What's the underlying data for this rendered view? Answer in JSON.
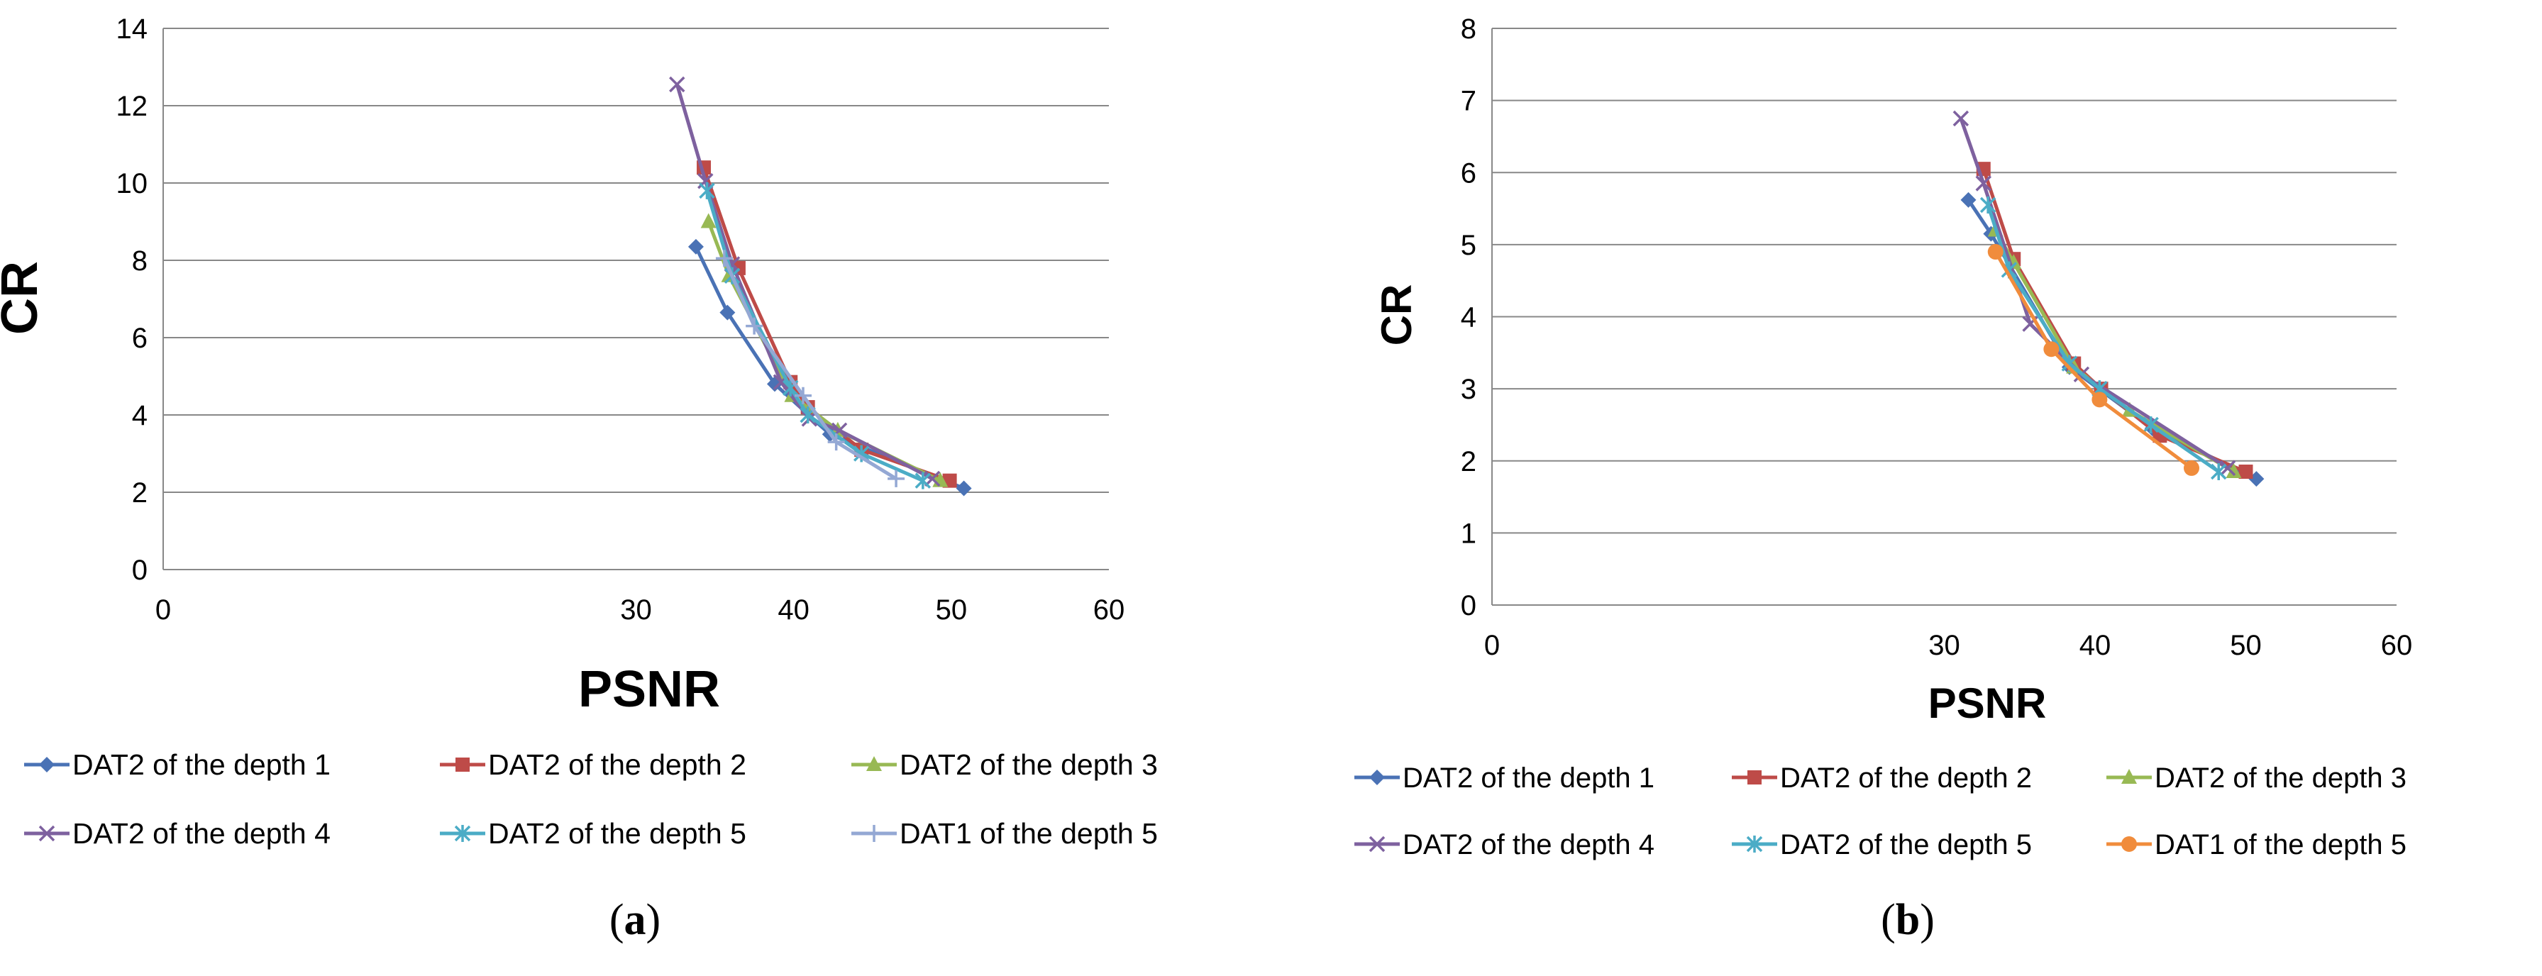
{
  "chart_data": [
    {
      "type": "line",
      "xlabel": "PSNR",
      "ylabel": "CR",
      "xlim": [
        0,
        60
      ],
      "ylim": [
        0,
        14
      ],
      "x_ticks": [
        0,
        30,
        40,
        50,
        60
      ],
      "y_ticks": [
        0,
        2,
        4,
        6,
        8,
        10,
        12,
        14
      ],
      "grid": "horizontal",
      "legend_position": "bottom",
      "caption": "a",
      "series": [
        {
          "name": "DAT2 of the depth 1",
          "color": "#4a72b5",
          "marker": "diamond",
          "points": [
            [
              33.8,
              8.35
            ],
            [
              35.8,
              6.65
            ],
            [
              38.8,
              4.8
            ],
            [
              42.3,
              3.5
            ],
            [
              50.8,
              2.1
            ]
          ]
        },
        {
          "name": "DAT2 of the depth 2",
          "color": "#be4b48",
          "marker": "square",
          "points": [
            [
              34.3,
              10.4
            ],
            [
              36.5,
              7.8
            ],
            [
              39.8,
              4.85
            ],
            [
              40.9,
              4.2
            ],
            [
              44.3,
              3.1
            ],
            [
              49.9,
              2.3
            ]
          ]
        },
        {
          "name": "DAT2 of the depth 3",
          "color": "#98b954",
          "marker": "triangle",
          "points": [
            [
              34.6,
              9.0
            ],
            [
              35.9,
              7.6
            ],
            [
              39.9,
              4.5
            ],
            [
              42.8,
              3.6
            ],
            [
              49.3,
              2.3
            ]
          ]
        },
        {
          "name": "DAT2 of the depth 4",
          "color": "#7e619f",
          "marker": "x",
          "points": [
            [
              32.6,
              12.55
            ],
            [
              34.4,
              10.05
            ],
            [
              36.1,
              7.9
            ],
            [
              39.2,
              4.85
            ],
            [
              41.0,
              3.9
            ],
            [
              42.9,
              3.6
            ],
            [
              48.8,
              2.35
            ]
          ]
        },
        {
          "name": "DAT2 of the depth 5",
          "color": "#4bacc6",
          "marker": "asterisk",
          "points": [
            [
              34.5,
              9.8
            ],
            [
              36.1,
              7.6
            ],
            [
              39.8,
              4.7
            ],
            [
              40.9,
              4.0
            ],
            [
              44.3,
              3.0
            ],
            [
              48.2,
              2.3
            ]
          ]
        },
        {
          "name": "DAT1 of the depth 5",
          "color": "#94a8d4",
          "marker": "plus",
          "points": [
            [
              35.6,
              8.05
            ],
            [
              37.5,
              6.3
            ],
            [
              40.6,
              4.5
            ],
            [
              42.7,
              3.3
            ],
            [
              46.5,
              2.35
            ]
          ]
        }
      ]
    },
    {
      "type": "line",
      "xlabel": "PSNR",
      "ylabel": "CR",
      "xlim": [
        0,
        60
      ],
      "ylim": [
        0,
        8
      ],
      "x_ticks": [
        0,
        30,
        40,
        50,
        60
      ],
      "y_ticks": [
        0,
        1,
        2,
        3,
        4,
        5,
        6,
        7,
        8
      ],
      "grid": "horizontal",
      "legend_position": "bottom",
      "caption": "b",
      "series": [
        {
          "name": "DAT2 of the depth 1",
          "color": "#4a72b5",
          "marker": "diamond",
          "points": [
            [
              31.6,
              5.62
            ],
            [
              33.1,
              5.15
            ],
            [
              38.3,
              3.3
            ],
            [
              43.8,
              2.45
            ],
            [
              50.7,
              1.75
            ]
          ]
        },
        {
          "name": "DAT2 of the depth 2",
          "color": "#be4b48",
          "marker": "square",
          "points": [
            [
              32.6,
              6.05
            ],
            [
              34.6,
              4.8
            ],
            [
              38.6,
              3.35
            ],
            [
              40.4,
              3.0
            ],
            [
              44.3,
              2.35
            ],
            [
              50.0,
              1.85
            ]
          ]
        },
        {
          "name": "DAT2 of the depth 3",
          "color": "#98b954",
          "marker": "triangle",
          "points": [
            [
              33.4,
              5.2
            ],
            [
              34.6,
              4.75
            ],
            [
              38.6,
              3.3
            ],
            [
              42.3,
              2.7
            ],
            [
              49.2,
              1.85
            ]
          ]
        },
        {
          "name": "DAT2 of the depth 4",
          "color": "#7e619f",
          "marker": "x",
          "points": [
            [
              31.1,
              6.75
            ],
            [
              32.6,
              5.85
            ],
            [
              35.7,
              3.9
            ],
            [
              39.1,
              3.2
            ],
            [
              48.8,
              1.9
            ]
          ]
        },
        {
          "name": "DAT2 of the depth 5",
          "color": "#4bacc6",
          "marker": "asterisk",
          "points": [
            [
              32.9,
              5.55
            ],
            [
              34.3,
              4.65
            ],
            [
              38.3,
              3.35
            ],
            [
              40.3,
              3.0
            ],
            [
              43.7,
              2.5
            ],
            [
              48.2,
              1.85
            ]
          ]
        },
        {
          "name": "DAT1 of the depth 5",
          "color": "#f08c3c",
          "marker": "circle",
          "points": [
            [
              33.4,
              4.9
            ],
            [
              37.1,
              3.55
            ],
            [
              40.3,
              2.85
            ],
            [
              46.4,
              1.9
            ]
          ]
        }
      ]
    }
  ]
}
